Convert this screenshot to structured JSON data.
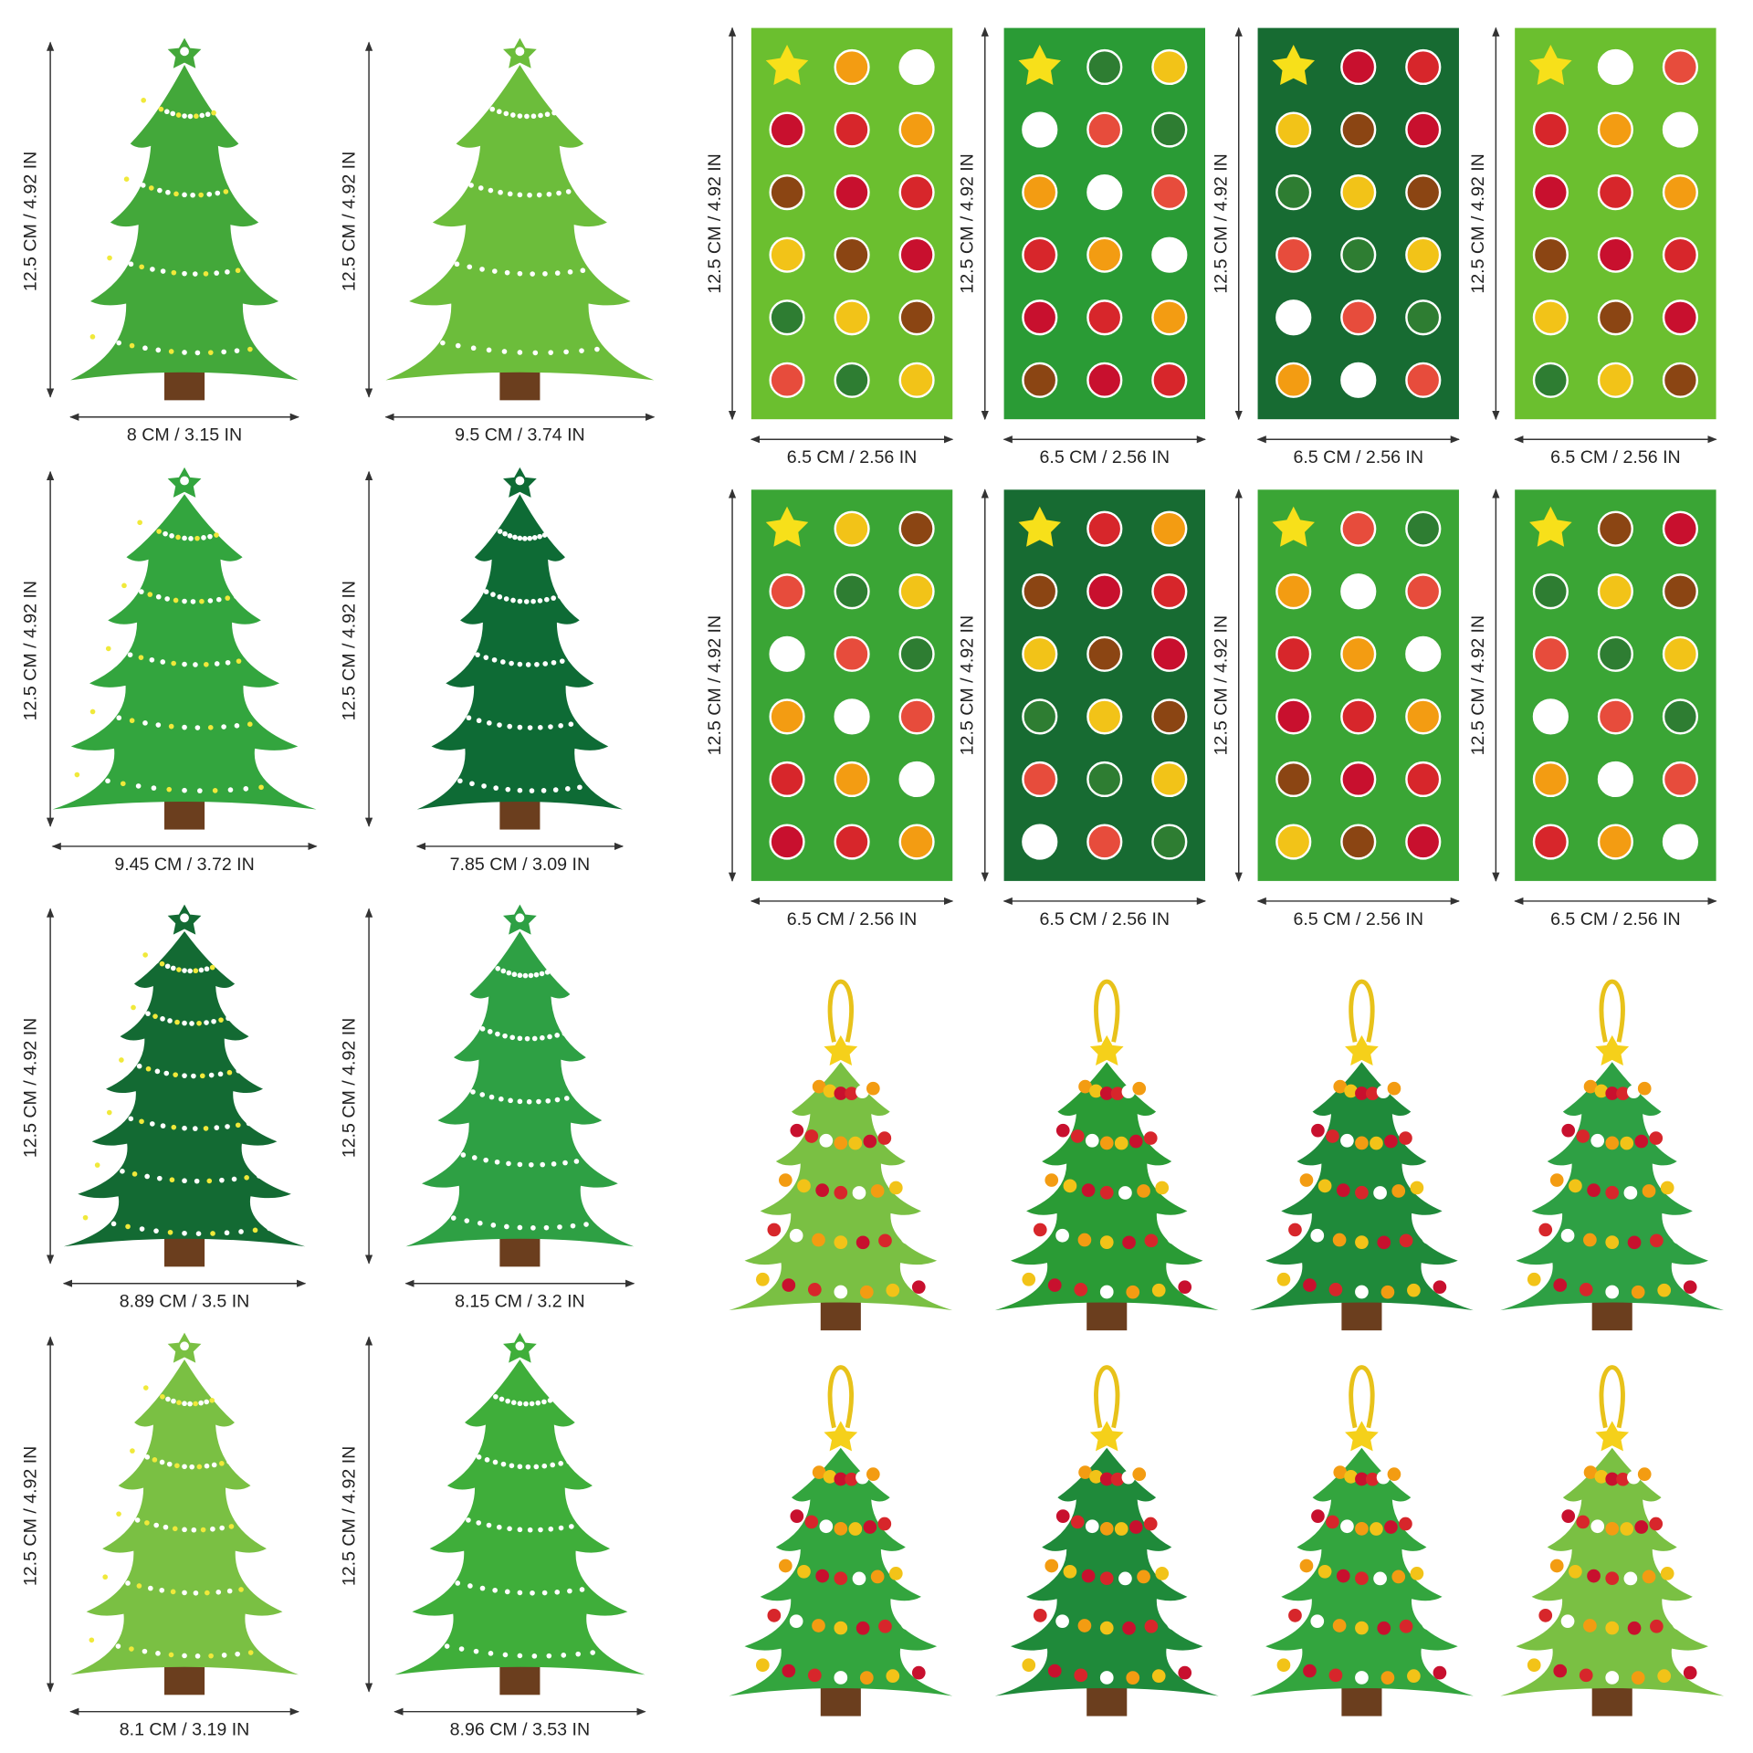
{
  "trees": [
    {
      "height": "12.5 CM / 4.92 IN",
      "width": "8 CM / 3.15 IN"
    },
    {
      "height": "12.5 CM / 4.92 IN",
      "width": "9.5 CM / 3.74 IN"
    },
    {
      "height": "12.5 CM / 4.92 IN",
      "width": "9.45 CM / 3.72 IN"
    },
    {
      "height": "12.5 CM / 4.92 IN",
      "width": "7.85 CM / 3.09 IN"
    },
    {
      "height": "12.5 CM / 4.92 IN",
      "width": "8.89 CM / 3.5 IN"
    },
    {
      "height": "12.5 CM / 4.92 IN",
      "width": "8.15 CM / 3.2 IN"
    },
    {
      "height": "12.5 CM / 4.92 IN",
      "width": "8.1 CM / 3.19 IN"
    },
    {
      "height": "12.5 CM / 4.92 IN",
      "width": "8.96 CM / 3.53 IN"
    }
  ],
  "sticker_sheets": [
    {
      "height": "12.5 CM / 4.92 IN",
      "width": "6.5 CM / 2.56 IN"
    },
    {
      "height": "12.5 CM / 4.92 IN",
      "width": "6.5 CM / 2.56 IN"
    },
    {
      "height": "12.5 CM / 4.92 IN",
      "width": "6.5 CM / 2.56 IN"
    },
    {
      "height": "12.5 CM / 4.92 IN",
      "width": "6.5 CM / 2.56 IN"
    },
    {
      "height": "12.5 CM / 4.92 IN",
      "width": "6.5 CM / 2.56 IN"
    },
    {
      "height": "12.5 CM / 4.92 IN",
      "width": "6.5 CM / 2.56 IN"
    },
    {
      "height": "12.5 CM / 4.92 IN",
      "width": "6.5 CM / 2.56 IN"
    },
    {
      "height": "12.5 CM / 4.92 IN",
      "width": "6.5 CM / 2.56 IN"
    }
  ]
}
